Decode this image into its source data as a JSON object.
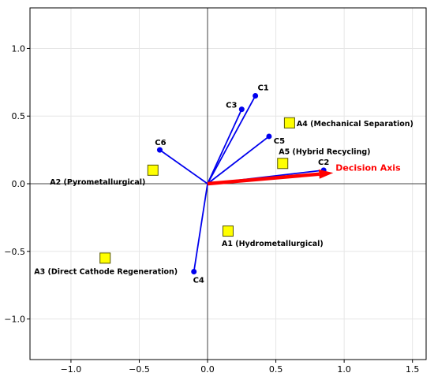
{
  "chart_data": {
    "type": "scatter",
    "title": "",
    "xlabel": "",
    "ylabel": "",
    "xlim": [
      -1.3,
      1.6
    ],
    "ylim": [
      -1.3,
      1.3
    ],
    "grid": true,
    "x_ticks": [
      -1.0,
      -0.5,
      0.0,
      0.5,
      1.0,
      1.5
    ],
    "x_tick_labels": [
      "−1.0",
      "−0.5",
      "0.0",
      "0.5",
      "1.0",
      "1.5"
    ],
    "y_ticks": [
      -1.0,
      -0.5,
      0.0,
      0.5,
      1.0
    ],
    "y_tick_labels": [
      "−1.0",
      "−0.5",
      "0.0",
      "0.5",
      "1.0"
    ],
    "criteria": [
      {
        "label": "C1",
        "x": 0.35,
        "y": 0.65
      },
      {
        "label": "C2",
        "x": 0.85,
        "y": 0.1
      },
      {
        "label": "C3",
        "x": 0.25,
        "y": 0.55
      },
      {
        "label": "C4",
        "x": -0.1,
        "y": -0.65
      },
      {
        "label": "C5",
        "x": 0.45,
        "y": 0.35
      },
      {
        "label": "C6",
        "x": -0.35,
        "y": 0.25
      }
    ],
    "alternatives": [
      {
        "label": "A1 (Hydrometallurgical)",
        "x": 0.15,
        "y": -0.35
      },
      {
        "label": "A2 (Pyrometallurgical)",
        "x": -0.4,
        "y": 0.1
      },
      {
        "label": "A3 (Direct Cathode Regeneration)",
        "x": -0.75,
        "y": -0.55
      },
      {
        "label": "A4 (Mechanical Separation)",
        "x": 0.6,
        "y": 0.45
      },
      {
        "label": "A5 (Hybrid Recycling)",
        "x": 0.55,
        "y": 0.15
      }
    ],
    "decision_axis": {
      "label": "Decision Axis",
      "x": 0.92,
      "y": 0.08
    },
    "colors": {
      "criteria": "#0000ee",
      "alternative_fill": "#ffff00",
      "alternative_edge": "#555500",
      "decision_axis": "#ff0000",
      "axis_lines": "#444444",
      "grid": "#e6e6e6"
    }
  }
}
